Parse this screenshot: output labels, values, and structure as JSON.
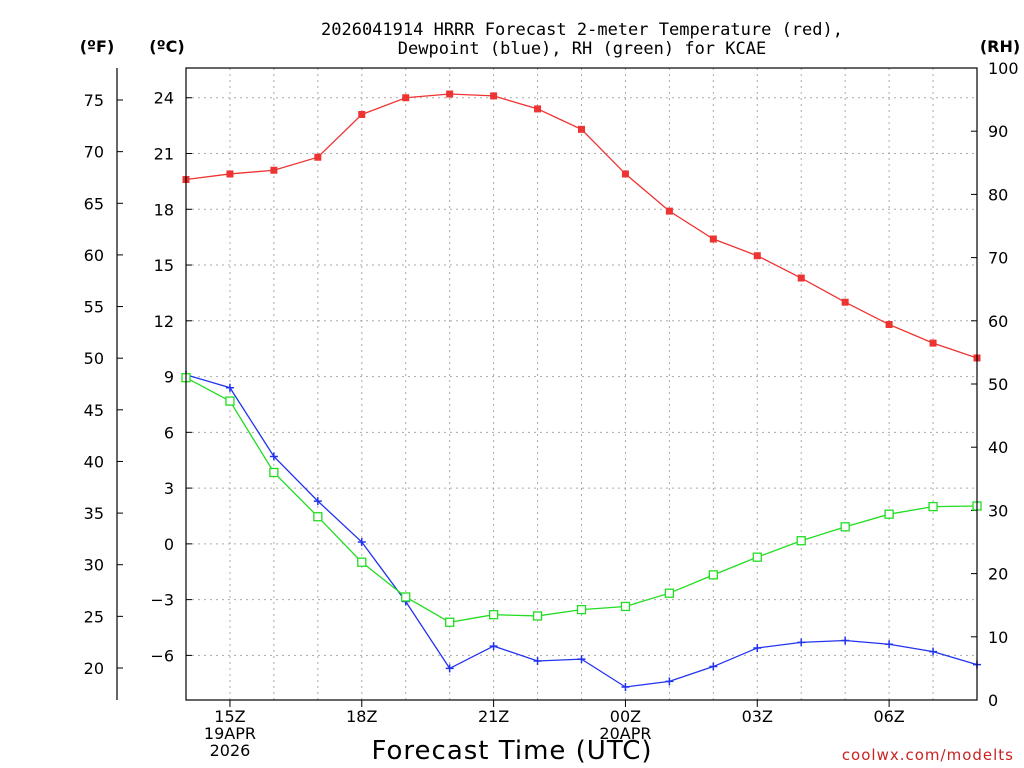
{
  "chart_data": {
    "type": "line",
    "title_lines": [
      "2026041914 HRRR Forecast 2-meter Temperature (red),",
      "Dewpoint (blue), RH (green) for KCAE"
    ],
    "xlabel": "Forecast Time (UTC)",
    "credit": "coolwx.com/modelts",
    "units": {
      "fahrenheit": "(ºF)",
      "celsius": "(ºC)",
      "rh": "(RH)"
    },
    "x_hours": [
      14,
      15,
      16,
      17,
      18,
      19,
      20,
      21,
      22,
      23,
      24,
      25,
      26,
      27,
      28,
      29,
      30,
      31,
      32
    ],
    "x_range": [
      14,
      32
    ],
    "x_ticks": [
      {
        "hour": 15,
        "lines": [
          "15Z",
          "19APR",
          "2026"
        ]
      },
      {
        "hour": 18,
        "lines": [
          "18Z"
        ]
      },
      {
        "hour": 21,
        "lines": [
          "21Z"
        ]
      },
      {
        "hour": 24,
        "lines": [
          "00Z",
          "20APR"
        ]
      },
      {
        "hour": 27,
        "lines": [
          "03Z"
        ]
      },
      {
        "hour": 30,
        "lines": [
          "06Z"
        ]
      }
    ],
    "celsius_axis": {
      "range": [
        -8.4,
        25.6
      ],
      "ticks": [
        24,
        21,
        18,
        15,
        12,
        9,
        6,
        3,
        0,
        -3,
        -6
      ],
      "tick_labels": [
        "24",
        "21",
        "18",
        "15",
        "12",
        "9",
        "6",
        "3",
        "0",
        "−3",
        "−6"
      ]
    },
    "fahrenheit_axis": {
      "range": [
        16.9,
        78.1
      ],
      "ticks": [
        75,
        70,
        65,
        60,
        55,
        50,
        45,
        40,
        35,
        30,
        25,
        20
      ],
      "tick_labels": [
        "75",
        "70",
        "65",
        "60",
        "55",
        "50",
        "45",
        "40",
        "35",
        "30",
        "25",
        "20"
      ]
    },
    "rh_axis": {
      "range": [
        0,
        100
      ],
      "ticks": [
        100,
        90,
        80,
        70,
        60,
        50,
        40,
        30,
        20,
        10,
        0
      ],
      "tick_labels": [
        "100",
        "90",
        "80",
        "70",
        "60",
        "50",
        "40",
        "30",
        "20",
        "10",
        "0"
      ]
    },
    "series": [
      {
        "name": "Temperature (°C)",
        "color": "#ee3333",
        "marker": "filled-square",
        "axis": "celsius",
        "values": [
          19.6,
          19.9,
          20.1,
          20.8,
          23.1,
          24.0,
          24.2,
          24.1,
          23.4,
          22.3,
          19.9,
          17.9,
          16.4,
          15.5,
          14.3,
          13.0,
          11.8,
          10.8,
          10.0
        ]
      },
      {
        "name": "Dewpoint (°C)",
        "color": "#2233ee",
        "marker": "plus",
        "axis": "celsius",
        "values": [
          9.1,
          8.4,
          4.7,
          2.3,
          0.1,
          -3.1,
          -6.7,
          -5.5,
          -6.3,
          -6.2,
          -7.7,
          -7.4,
          -6.6,
          -5.6,
          -5.3,
          -5.2,
          -5.4,
          -5.8,
          -6.5
        ]
      },
      {
        "name": "Relative Humidity (%)",
        "color": "#22dd22",
        "marker": "open-square",
        "axis": "rh",
        "values": [
          51.0,
          47.3,
          36.0,
          29.0,
          21.8,
          16.3,
          12.3,
          13.5,
          13.3,
          14.3,
          14.8,
          16.9,
          19.8,
          22.6,
          25.2,
          27.4,
          29.4,
          30.6,
          30.7
        ]
      }
    ],
    "grid": true,
    "legend": "title"
  }
}
